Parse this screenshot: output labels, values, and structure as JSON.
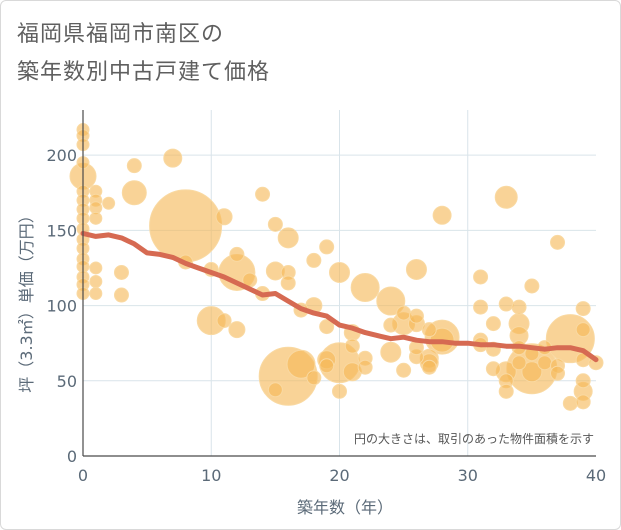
{
  "page": {
    "title_line1": "福岡県福岡市南区の",
    "title_line2": "築年数別中古戸建て価格"
  },
  "chart_data": {
    "type": "scatter",
    "xlabel": "築年数（年）",
    "ylabel": "坪（3.3㎡）単価（万円）",
    "xlim": [
      0,
      40
    ],
    "ylim": [
      0,
      230
    ],
    "xticks": [
      "0",
      "10",
      "20",
      "30",
      "40"
    ],
    "yticks": [
      "0",
      "50",
      "100",
      "150",
      "200"
    ],
    "grid": true,
    "note": "円の大きさは、取引のあった物件面積を示す",
    "colors": {
      "bubble": "#f5b857",
      "bubble_stroke": "#f9d9a2",
      "trend": "#d66a52",
      "grid": "#d9e4ea",
      "text": "#5b6a78"
    },
    "bubbles": [
      {
        "x": 0,
        "y": 217,
        "s": 6
      },
      {
        "x": 0,
        "y": 213,
        "s": 6
      },
      {
        "x": 0,
        "y": 207,
        "s": 6
      },
      {
        "x": 0,
        "y": 195,
        "s": 6
      },
      {
        "x": 0,
        "y": 186,
        "s": 13
      },
      {
        "x": 0,
        "y": 176,
        "s": 6
      },
      {
        "x": 0,
        "y": 170,
        "s": 6
      },
      {
        "x": 0,
        "y": 164,
        "s": 6
      },
      {
        "x": 0,
        "y": 158,
        "s": 6
      },
      {
        "x": 0,
        "y": 151,
        "s": 6
      },
      {
        "x": 0,
        "y": 144,
        "s": 6
      },
      {
        "x": 0,
        "y": 138,
        "s": 6
      },
      {
        "x": 0,
        "y": 131,
        "s": 6
      },
      {
        "x": 0,
        "y": 126,
        "s": 6
      },
      {
        "x": 0,
        "y": 119,
        "s": 6
      },
      {
        "x": 0,
        "y": 114,
        "s": 6
      },
      {
        "x": 0,
        "y": 108,
        "s": 6
      },
      {
        "x": 1,
        "y": 176,
        "s": 6
      },
      {
        "x": 1,
        "y": 170,
        "s": 6
      },
      {
        "x": 1,
        "y": 165,
        "s": 6
      },
      {
        "x": 1,
        "y": 158,
        "s": 6
      },
      {
        "x": 1,
        "y": 125,
        "s": 6
      },
      {
        "x": 1,
        "y": 116,
        "s": 6
      },
      {
        "x": 1,
        "y": 108,
        "s": 6
      },
      {
        "x": 2,
        "y": 168,
        "s": 6
      },
      {
        "x": 3,
        "y": 122,
        "s": 7
      },
      {
        "x": 3,
        "y": 107,
        "s": 7
      },
      {
        "x": 4,
        "y": 193,
        "s": 7
      },
      {
        "x": 4,
        "y": 175,
        "s": 12
      },
      {
        "x": 7,
        "y": 198,
        "s": 9
      },
      {
        "x": 8,
        "y": 153,
        "s": 36
      },
      {
        "x": 8,
        "y": 129,
        "s": 7
      },
      {
        "x": 10,
        "y": 90,
        "s": 14
      },
      {
        "x": 10,
        "y": 124,
        "s": 7
      },
      {
        "x": 11,
        "y": 159,
        "s": 8
      },
      {
        "x": 11,
        "y": 90,
        "s": 7
      },
      {
        "x": 12,
        "y": 134,
        "s": 7
      },
      {
        "x": 12,
        "y": 122,
        "s": 18
      },
      {
        "x": 12,
        "y": 84,
        "s": 8
      },
      {
        "x": 13,
        "y": 117,
        "s": 7
      },
      {
        "x": 14,
        "y": 174,
        "s": 7
      },
      {
        "x": 14,
        "y": 108,
        "s": 7
      },
      {
        "x": 15,
        "y": 154,
        "s": 7
      },
      {
        "x": 15,
        "y": 123,
        "s": 9
      },
      {
        "x": 15,
        "y": 44,
        "s": 7
      },
      {
        "x": 16,
        "y": 145,
        "s": 10
      },
      {
        "x": 16,
        "y": 122,
        "s": 7
      },
      {
        "x": 16,
        "y": 115,
        "s": 7
      },
      {
        "x": 16,
        "y": 53,
        "s": 29
      },
      {
        "x": 17,
        "y": 97,
        "s": 7
      },
      {
        "x": 17,
        "y": 61,
        "s": 14
      },
      {
        "x": 18,
        "y": 130,
        "s": 7
      },
      {
        "x": 18,
        "y": 100,
        "s": 8
      },
      {
        "x": 18,
        "y": 52,
        "s": 7
      },
      {
        "x": 19,
        "y": 139,
        "s": 7
      },
      {
        "x": 19,
        "y": 86,
        "s": 7
      },
      {
        "x": 19,
        "y": 64,
        "s": 9
      },
      {
        "x": 19,
        "y": 60,
        "s": 7
      },
      {
        "x": 20,
        "y": 122,
        "s": 10
      },
      {
        "x": 20,
        "y": 62,
        "s": 20
      },
      {
        "x": 20,
        "y": 43,
        "s": 7
      },
      {
        "x": 21,
        "y": 82,
        "s": 8
      },
      {
        "x": 21,
        "y": 73,
        "s": 7
      },
      {
        "x": 21,
        "y": 56,
        "s": 9
      },
      {
        "x": 22,
        "y": 112,
        "s": 14
      },
      {
        "x": 22,
        "y": 65,
        "s": 7
      },
      {
        "x": 22,
        "y": 59,
        "s": 7
      },
      {
        "x": 24,
        "y": 103,
        "s": 14
      },
      {
        "x": 24,
        "y": 87,
        "s": 7
      },
      {
        "x": 24,
        "y": 69,
        "s": 10
      },
      {
        "x": 25,
        "y": 95,
        "s": 7
      },
      {
        "x": 25,
        "y": 88,
        "s": 11
      },
      {
        "x": 25,
        "y": 57,
        "s": 7
      },
      {
        "x": 26,
        "y": 124,
        "s": 10
      },
      {
        "x": 26,
        "y": 93,
        "s": 7
      },
      {
        "x": 26,
        "y": 88,
        "s": 8
      },
      {
        "x": 26,
        "y": 66,
        "s": 7
      },
      {
        "x": 26,
        "y": 72,
        "s": 7
      },
      {
        "x": 27,
        "y": 84,
        "s": 7
      },
      {
        "x": 27,
        "y": 65,
        "s": 9
      },
      {
        "x": 27,
        "y": 62,
        "s": 9
      },
      {
        "x": 27,
        "y": 59,
        "s": 7
      },
      {
        "x": 28,
        "y": 160,
        "s": 9
      },
      {
        "x": 28,
        "y": 79,
        "s": 17
      },
      {
        "x": 28,
        "y": 77,
        "s": 12
      },
      {
        "x": 31,
        "y": 119,
        "s": 7
      },
      {
        "x": 31,
        "y": 99,
        "s": 7
      },
      {
        "x": 31,
        "y": 77,
        "s": 7
      },
      {
        "x": 31,
        "y": 74,
        "s": 7
      },
      {
        "x": 32,
        "y": 88,
        "s": 7
      },
      {
        "x": 32,
        "y": 71,
        "s": 7
      },
      {
        "x": 32,
        "y": 58,
        "s": 7
      },
      {
        "x": 33,
        "y": 172,
        "s": 11
      },
      {
        "x": 33,
        "y": 101,
        "s": 7
      },
      {
        "x": 33,
        "y": 56,
        "s": 10
      },
      {
        "x": 33,
        "y": 50,
        "s": 7
      },
      {
        "x": 33,
        "y": 43,
        "s": 7
      },
      {
        "x": 34,
        "y": 99,
        "s": 7
      },
      {
        "x": 34,
        "y": 88,
        "s": 10
      },
      {
        "x": 34,
        "y": 80,
        "s": 9
      },
      {
        "x": 34,
        "y": 72,
        "s": 7
      },
      {
        "x": 34,
        "y": 62,
        "s": 7
      },
      {
        "x": 35,
        "y": 113,
        "s": 7
      },
      {
        "x": 35,
        "y": 68,
        "s": 7
      },
      {
        "x": 35,
        "y": 58,
        "s": 25
      },
      {
        "x": 35,
        "y": 56,
        "s": 10
      },
      {
        "x": 36,
        "y": 72,
        "s": 7
      },
      {
        "x": 36,
        "y": 62,
        "s": 7
      },
      {
        "x": 37,
        "y": 142,
        "s": 7
      },
      {
        "x": 37,
        "y": 60,
        "s": 7
      },
      {
        "x": 37,
        "y": 55,
        "s": 7
      },
      {
        "x": 38,
        "y": 78,
        "s": 24
      },
      {
        "x": 38,
        "y": 35,
        "s": 7
      },
      {
        "x": 39,
        "y": 98,
        "s": 7
      },
      {
        "x": 39,
        "y": 84,
        "s": 7
      },
      {
        "x": 39,
        "y": 64,
        "s": 7
      },
      {
        "x": 39,
        "y": 50,
        "s": 7
      },
      {
        "x": 39,
        "y": 43,
        "s": 9
      },
      {
        "x": 39,
        "y": 36,
        "s": 7
      },
      {
        "x": 40,
        "y": 62,
        "s": 7
      }
    ],
    "series": [
      {
        "x": [
          0,
          1,
          2,
          3,
          4,
          5,
          6,
          7,
          8,
          9,
          10,
          11,
          12,
          13,
          14,
          15,
          16,
          17,
          18,
          19,
          20,
          21,
          22,
          23,
          24,
          25,
          26,
          27,
          28,
          29,
          30,
          31,
          32,
          33,
          34,
          35,
          36,
          37,
          38,
          39,
          40
        ],
        "values": [
          148,
          146,
          147,
          145,
          141,
          135,
          134,
          132,
          128,
          125,
          122,
          119,
          115,
          111,
          107,
          108,
          103,
          98,
          95,
          93,
          87,
          85,
          82,
          80,
          78,
          79,
          77,
          76,
          76,
          75,
          75,
          74,
          74,
          73,
          73,
          72,
          71,
          72,
          72,
          70,
          64
        ]
      }
    ]
  }
}
